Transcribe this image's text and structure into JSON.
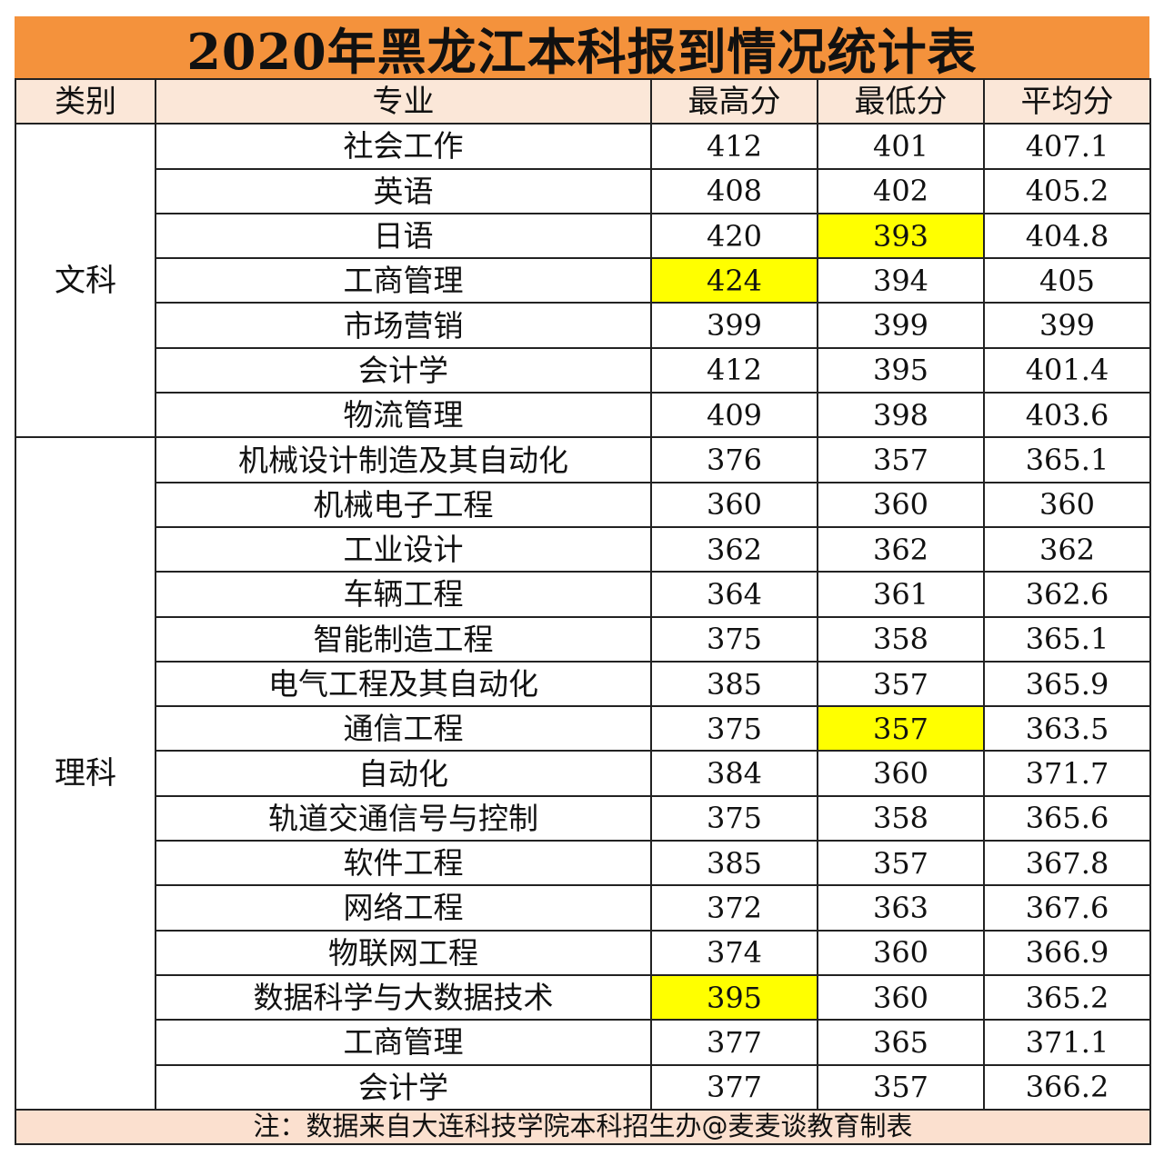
{
  "title": "2020年黑龙江本科报到情况统计表",
  "colors": {
    "title_bg": "#f4923c",
    "header_bg": "#fbe7d8",
    "note_bg": "#fbe0cf",
    "highlight": "#ffff00"
  },
  "headers": [
    "类别",
    "专业",
    "最高分",
    "最低分",
    "平均分"
  ],
  "groups": [
    {
      "category": "文科",
      "rows": [
        {
          "major": "社会工作",
          "max": "412",
          "min": "401",
          "avg": "407.1"
        },
        {
          "major": "英语",
          "max": "408",
          "min": "402",
          "avg": "405.2"
        },
        {
          "major": "日语",
          "max": "420",
          "min": "393",
          "avg": "404.8",
          "highlight": "min"
        },
        {
          "major": "工商管理",
          "max": "424",
          "min": "394",
          "avg": "405",
          "highlight": "max"
        },
        {
          "major": "市场营销",
          "max": "399",
          "min": "399",
          "avg": "399"
        },
        {
          "major": "会计学",
          "max": "412",
          "min": "395",
          "avg": "401.4"
        },
        {
          "major": "物流管理",
          "max": "409",
          "min": "398",
          "avg": "403.6"
        }
      ]
    },
    {
      "category": "理科",
      "rows": [
        {
          "major": "机械设计制造及其自动化",
          "max": "376",
          "min": "357",
          "avg": "365.1"
        },
        {
          "major": "机械电子工程",
          "max": "360",
          "min": "360",
          "avg": "360"
        },
        {
          "major": "工业设计",
          "max": "362",
          "min": "362",
          "avg": "362"
        },
        {
          "major": "车辆工程",
          "max": "364",
          "min": "361",
          "avg": "362.6"
        },
        {
          "major": "智能制造工程",
          "max": "375",
          "min": "358",
          "avg": "365.1"
        },
        {
          "major": "电气工程及其自动化",
          "max": "385",
          "min": "357",
          "avg": "365.9"
        },
        {
          "major": "通信工程",
          "max": "375",
          "min": "357",
          "avg": "363.5",
          "highlight": "min"
        },
        {
          "major": "自动化",
          "max": "384",
          "min": "360",
          "avg": "371.7"
        },
        {
          "major": "轨道交通信号与控制",
          "max": "375",
          "min": "358",
          "avg": "365.6"
        },
        {
          "major": "软件工程",
          "max": "385",
          "min": "357",
          "avg": "367.8"
        },
        {
          "major": "网络工程",
          "max": "372",
          "min": "363",
          "avg": "367.6"
        },
        {
          "major": "物联网工程",
          "max": "374",
          "min": "360",
          "avg": "366.9"
        },
        {
          "major": "数据科学与大数据技术",
          "max": "395",
          "min": "360",
          "avg": "365.2",
          "highlight": "max"
        },
        {
          "major": "工商管理",
          "max": "377",
          "min": "365",
          "avg": "371.1"
        },
        {
          "major": "会计学",
          "max": "377",
          "min": "357",
          "avg": "366.2"
        }
      ]
    }
  ],
  "note": "注：数据来自大连科技学院本科招生办@麦麦谈教育制表"
}
